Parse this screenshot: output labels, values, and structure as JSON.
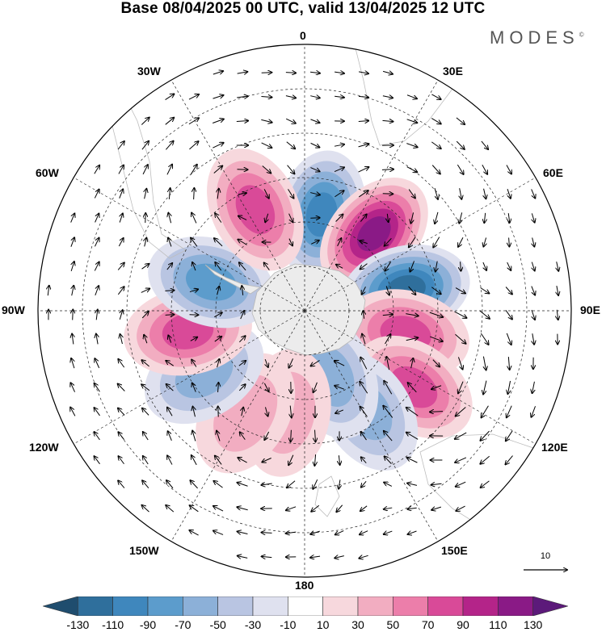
{
  "title": "Base 08/04/2025 00 UTC, valid 13/04/2025 12 UTC",
  "brand": "MODES",
  "brand_mark": "©",
  "longitude_labels": {
    "top": "0",
    "e30": "30E",
    "e60": "60E",
    "e90": "90E",
    "e120": "120E",
    "e150": "150E",
    "bottom": "180",
    "w150": "150W",
    "w120": "120W",
    "w90": "90W",
    "w60": "60W",
    "w30": "30W"
  },
  "vector_reference": "10",
  "colorbar": {
    "bins": [
      {
        "color": "#1f4d6e"
      },
      {
        "color": "#2f6f9c"
      },
      {
        "color": "#3f87bd"
      },
      {
        "color": "#5c9ccc"
      },
      {
        "color": "#8cb0d8"
      },
      {
        "color": "#b9c5e2"
      },
      {
        "color": "#dfe1ef"
      },
      {
        "color": "#ffffff"
      },
      {
        "color": "#f7d8dd"
      },
      {
        "color": "#f2adc1"
      },
      {
        "color": "#ec7eaa"
      },
      {
        "color": "#d94a98"
      },
      {
        "color": "#b42489"
      },
      {
        "color": "#8a1a86"
      },
      {
        "color": "#5c1a7a"
      }
    ],
    "labels": [
      "-130",
      "-110",
      "-90",
      "-70",
      "-50",
      "-30",
      "-10",
      "10",
      "30",
      "50",
      "70",
      "90",
      "110",
      "130"
    ]
  },
  "anomaly_cells": [
    {
      "label": "",
      "lon": 10,
      "lat": -57,
      "value": -90
    },
    {
      "label": "",
      "lon": 42,
      "lat": -55,
      "value": 110
    },
    {
      "label": "",
      "lon": 78,
      "lat": -55,
      "value": -120
    },
    {
      "label": "",
      "lon": 103,
      "lat": -55,
      "value": 80
    },
    {
      "label": "",
      "lon": 125,
      "lat": -45,
      "value": 70
    },
    {
      "label": "",
      "lon": 148,
      "lat": -50,
      "value": -60
    },
    {
      "label": "",
      "lon": 158,
      "lat": -66,
      "value": -60
    },
    {
      "label": "",
      "lon": -170,
      "lat": -55,
      "value": 30
    },
    {
      "label": "",
      "lon": -150,
      "lat": -50,
      "value": 30
    },
    {
      "label": "",
      "lon": -122,
      "lat": -50,
      "value": -60
    },
    {
      "label": "",
      "lon": -100,
      "lat": -50,
      "value": 70
    },
    {
      "label": "",
      "lon": -73,
      "lat": -57,
      "value": -70
    },
    {
      "label": "",
      "lon": -26,
      "lat": -52,
      "value": 70
    }
  ]
}
